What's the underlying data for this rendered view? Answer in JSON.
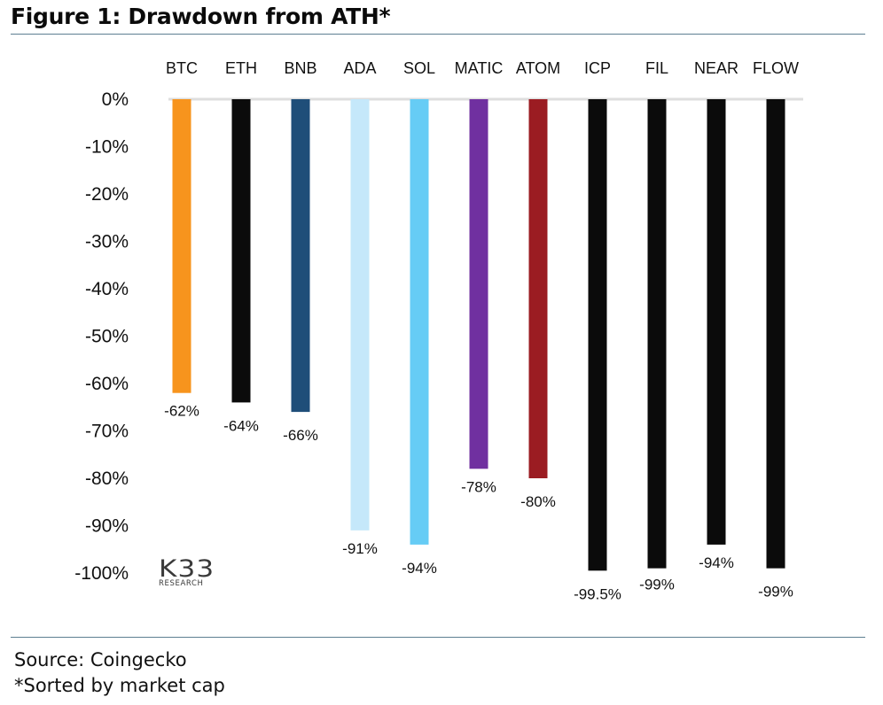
{
  "title": "Figure 1: Drawdown from ATH*",
  "source": "Source: Coingecko",
  "note": "*Sorted by market cap",
  "logo": {
    "mark": "K33",
    "sub": "RESEARCH"
  },
  "chart_data": {
    "type": "bar",
    "title": "Figure 1: Drawdown from ATH*",
    "xlabel": "",
    "ylabel": "",
    "ylim": [
      -100,
      0
    ],
    "yticks": [
      0,
      -10,
      -20,
      -30,
      -40,
      -50,
      -60,
      -70,
      -80,
      -90,
      -100
    ],
    "ytick_labels": [
      "0%",
      "-10%",
      "-20%",
      "-30%",
      "-40%",
      "-50%",
      "-60%",
      "-70%",
      "-80%",
      "-90%",
      "-100%"
    ],
    "categories": [
      "BTC",
      "ETH",
      "BNB",
      "ADA",
      "SOL",
      "MATIC",
      "ATOM",
      "ICP",
      "FIL",
      "NEAR",
      "FLOW"
    ],
    "values": [
      -62,
      -64,
      -66,
      -91,
      -94,
      -78,
      -80,
      -99.5,
      -99,
      -94,
      -99
    ],
    "data_labels": [
      "-62%",
      "-64%",
      "-66%",
      "-91%",
      "-94%",
      "-78%",
      "-80%",
      "-99.5%",
      "-99%",
      "-94%",
      "-99%"
    ],
    "colors": [
      "#f7941d",
      "#0b0b0b",
      "#1f4e79",
      "#c5e8fa",
      "#66ccf5",
      "#7030a0",
      "#9b1c22",
      "#0b0b0b",
      "#0b0b0b",
      "#0b0b0b",
      "#0b0b0b"
    ],
    "grid": false,
    "legend": "none"
  }
}
